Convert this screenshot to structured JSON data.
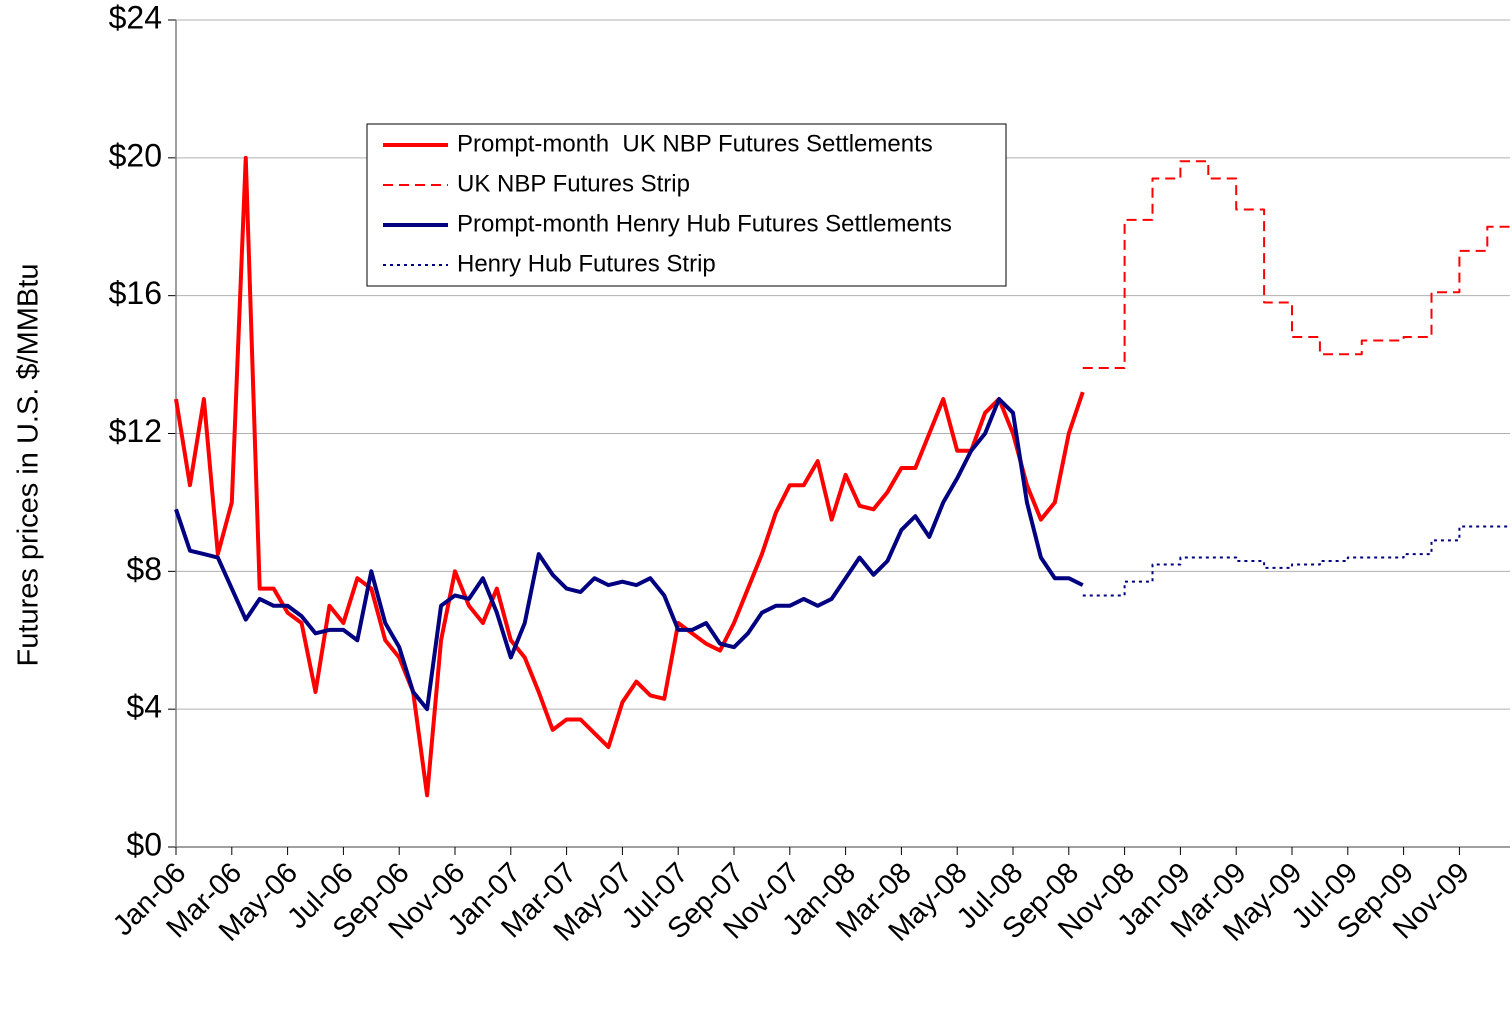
{
  "chart_data": {
    "type": "line",
    "y_label": "Futures prices in U.S. $/MMBtu",
    "categories": [
      "Jan-06",
      null,
      null,
      null,
      "Mar-06",
      null,
      null,
      null,
      "May-06",
      null,
      null,
      null,
      "Jul-06",
      null,
      null,
      null,
      "Sep-06",
      null,
      null,
      null,
      "Nov-06",
      null,
      null,
      null,
      "Jan-07",
      null,
      null,
      null,
      "Mar-07",
      null,
      null,
      null,
      "May-07",
      null,
      null,
      null,
      "Jul-07",
      null,
      null,
      null,
      "Sep-07",
      null,
      null,
      null,
      "Nov-07",
      null,
      null,
      null,
      "Jan-08",
      null,
      null,
      null,
      "Mar-08",
      null,
      null,
      null,
      "May-08",
      null,
      null,
      null,
      "Jul-08",
      null,
      null,
      null,
      "Sep-08",
      null,
      null,
      null,
      "Nov-08",
      null,
      null,
      null,
      "Jan-09",
      null,
      null,
      null,
      "Mar-09",
      null,
      null,
      null,
      "May-09",
      null,
      null,
      null,
      "Jul-09",
      null,
      null,
      null,
      "Sep-09",
      null,
      null,
      null,
      "Nov-09",
      null,
      null,
      null
    ],
    "ylim": [
      0,
      24
    ],
    "yticks": [
      {
        "value": 0,
        "label": "$0"
      },
      {
        "value": 4,
        "label": "$4"
      },
      {
        "value": 8,
        "label": "$8"
      },
      {
        "value": 12,
        "label": "$12"
      },
      {
        "value": 16,
        "label": "$16"
      },
      {
        "value": 20,
        "label": "$20"
      },
      {
        "value": 24,
        "label": "$24"
      }
    ],
    "grid": true,
    "series": [
      {
        "name": "Prompt-month  UK NBP Futures Settlements",
        "color": "#ff0000",
        "style": "solid",
        "width": 4,
        "values": [
          13,
          10.5,
          13,
          8.5,
          10,
          20,
          7.5,
          7.5,
          6.8,
          6.5,
          4.5,
          7,
          6.5,
          7.8,
          7.5,
          6,
          5.5,
          4.5,
          1.5,
          6,
          8,
          7,
          6.5,
          7.5,
          6,
          5.5,
          4.5,
          3.4,
          3.7,
          3.7,
          3.3,
          2.9,
          4.2,
          4.8,
          4.4,
          4.3,
          6.5,
          6.2,
          5.9,
          5.7,
          6.5,
          7.5,
          8.5,
          9.7,
          10.5,
          10.5,
          11.2,
          9.5,
          10.8,
          9.9,
          9.8,
          10.3,
          11,
          11,
          12,
          13,
          11.5,
          11.5,
          12.6,
          13,
          12,
          10.5,
          9.5,
          10,
          12,
          13.2,
          null,
          null,
          null,
          null,
          null,
          null,
          null,
          null,
          null,
          null,
          null,
          null,
          null,
          null,
          null,
          null,
          null,
          null,
          null,
          null,
          null,
          null,
          null,
          null,
          null,
          null,
          null,
          null,
          null,
          null
        ]
      },
      {
        "name": "UK NBP Futures Strip",
        "color": "#ff0000",
        "style": "dashed",
        "width": 2,
        "step": true,
        "values": [
          null,
          null,
          null,
          null,
          null,
          null,
          null,
          null,
          null,
          null,
          null,
          null,
          null,
          null,
          null,
          null,
          null,
          null,
          null,
          null,
          null,
          null,
          null,
          null,
          null,
          null,
          null,
          null,
          null,
          null,
          null,
          null,
          null,
          null,
          null,
          null,
          null,
          null,
          null,
          null,
          null,
          null,
          null,
          null,
          null,
          null,
          null,
          null,
          null,
          null,
          null,
          null,
          null,
          null,
          null,
          null,
          null,
          null,
          null,
          null,
          null,
          null,
          null,
          null,
          null,
          13.9,
          13.9,
          13.9,
          18.2,
          18.2,
          19.4,
          19.4,
          19.9,
          19.9,
          19.4,
          19.4,
          18.5,
          18.5,
          15.8,
          15.8,
          14.8,
          14.8,
          14.3,
          14.3,
          14.3,
          14.7,
          14.7,
          14.7,
          14.8,
          14.8,
          16.1,
          16.1,
          17.3,
          17.3,
          18,
          18
        ]
      },
      {
        "name": "Prompt-month Henry Hub Futures Settlements",
        "color": "#000080",
        "style": "solid",
        "width": 4,
        "values": [
          9.8,
          8.6,
          8.5,
          8.4,
          7.5,
          6.6,
          7.2,
          7,
          7,
          6.7,
          6.2,
          6.3,
          6.3,
          6,
          8,
          6.5,
          5.8,
          4.5,
          4,
          7,
          7.3,
          7.2,
          7.8,
          6.8,
          5.5,
          6.5,
          8.5,
          7.9,
          7.5,
          7.4,
          7.8,
          7.6,
          7.7,
          7.6,
          7.8,
          7.3,
          6.3,
          6.3,
          6.5,
          5.9,
          5.8,
          6.2,
          6.8,
          7,
          7,
          7.2,
          7,
          7.2,
          7.8,
          8.4,
          7.9,
          8.3,
          9.2,
          9.6,
          9,
          10,
          10.7,
          11.5,
          12,
          13,
          12.6,
          10,
          8.4,
          7.8,
          7.8,
          7.6,
          null,
          null,
          null,
          null,
          null,
          null,
          null,
          null,
          null,
          null,
          null,
          null,
          null,
          null,
          null,
          null,
          null,
          null,
          null,
          null,
          null,
          null,
          null,
          null,
          null,
          null,
          null,
          null,
          null,
          null
        ]
      },
      {
        "name": "Henry Hub Futures Strip",
        "color": "#000080",
        "style": "dotted",
        "width": 2,
        "step": true,
        "values": [
          null,
          null,
          null,
          null,
          null,
          null,
          null,
          null,
          null,
          null,
          null,
          null,
          null,
          null,
          null,
          null,
          null,
          null,
          null,
          null,
          null,
          null,
          null,
          null,
          null,
          null,
          null,
          null,
          null,
          null,
          null,
          null,
          null,
          null,
          null,
          null,
          null,
          null,
          null,
          null,
          null,
          null,
          null,
          null,
          null,
          null,
          null,
          null,
          null,
          null,
          null,
          null,
          null,
          null,
          null,
          null,
          null,
          null,
          null,
          null,
          null,
          null,
          null,
          null,
          null,
          7.3,
          7.3,
          7.3,
          7.7,
          7.7,
          8.2,
          8.2,
          8.4,
          8.4,
          8.4,
          8.4,
          8.3,
          8.3,
          8.1,
          8.1,
          8.2,
          8.2,
          8.3,
          8.3,
          8.4,
          8.4,
          8.4,
          8.4,
          8.5,
          8.5,
          8.9,
          8.9,
          9.3,
          9.3,
          9.3,
          9.3
        ]
      }
    ]
  }
}
